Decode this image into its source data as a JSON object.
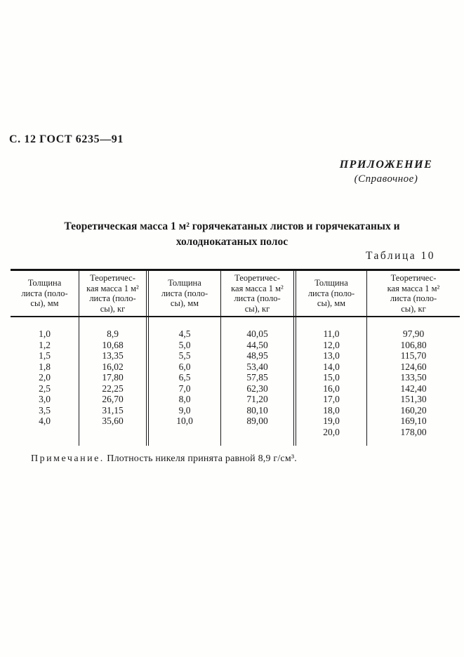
{
  "page": {
    "doc_header": "С. 12 ГОСТ 6235—91",
    "annex": {
      "title": "ПРИЛОЖЕНИЕ",
      "subtitle": "(Справочное)"
    },
    "table_title": {
      "line1": "Теоретическая масса 1 м² горячекатаных листов и горячекатаных и",
      "line2": "холоднокатаных полос"
    },
    "table_caption": "Таблица 10",
    "note": {
      "label": "Примечание.",
      "text": "Плотность никеля принята равной 8,9 г/см³."
    }
  },
  "table": {
    "header_thickness": "Толщина\nлиста (поло-\nсы), мм",
    "header_mass": "Теоретичес-\nкая масса 1 м²\nлиста (поло-\nсы), кг",
    "pairs": [
      {
        "rows": [
          {
            "t": "1,0",
            "m": "8,9"
          },
          {
            "t": "1,2",
            "m": "10,68"
          },
          {
            "t": "1,5",
            "m": "13,35"
          },
          {
            "t": "1,8",
            "m": "16,02"
          },
          {
            "t": "2,0",
            "m": "17,80"
          },
          {
            "t": "2,5",
            "m": "22,25"
          },
          {
            "t": "3,0",
            "m": "26,70"
          },
          {
            "t": "3,5",
            "m": "31,15"
          },
          {
            "t": "4,0",
            "m": "35,60"
          }
        ]
      },
      {
        "rows": [
          {
            "t": "4,5",
            "m": "40,05"
          },
          {
            "t": "5,0",
            "m": "44,50"
          },
          {
            "t": "5,5",
            "m": "48,95"
          },
          {
            "t": "6,0",
            "m": "53,40"
          },
          {
            "t": "6,5",
            "m": "57,85"
          },
          {
            "t": "7,0",
            "m": "62,30"
          },
          {
            "t": "8,0",
            "m": "71,20"
          },
          {
            "t": "9,0",
            "m": "80,10"
          },
          {
            "t": "10,0",
            "m": "89,00"
          }
        ]
      },
      {
        "rows": [
          {
            "t": "11,0",
            "m": "97,90"
          },
          {
            "t": "12,0",
            "m": "106,80"
          },
          {
            "t": "13,0",
            "m": "115,70"
          },
          {
            "t": "14,0",
            "m": "124,60"
          },
          {
            "t": "15,0",
            "m": "133,50"
          },
          {
            "t": "16,0",
            "m": "142,40"
          },
          {
            "t": "17,0",
            "m": "151,30"
          },
          {
            "t": "18,0",
            "m": "160,20"
          },
          {
            "t": "19,0",
            "m": "169,10"
          },
          {
            "t": "20,0",
            "m": "178,00"
          }
        ]
      }
    ]
  }
}
